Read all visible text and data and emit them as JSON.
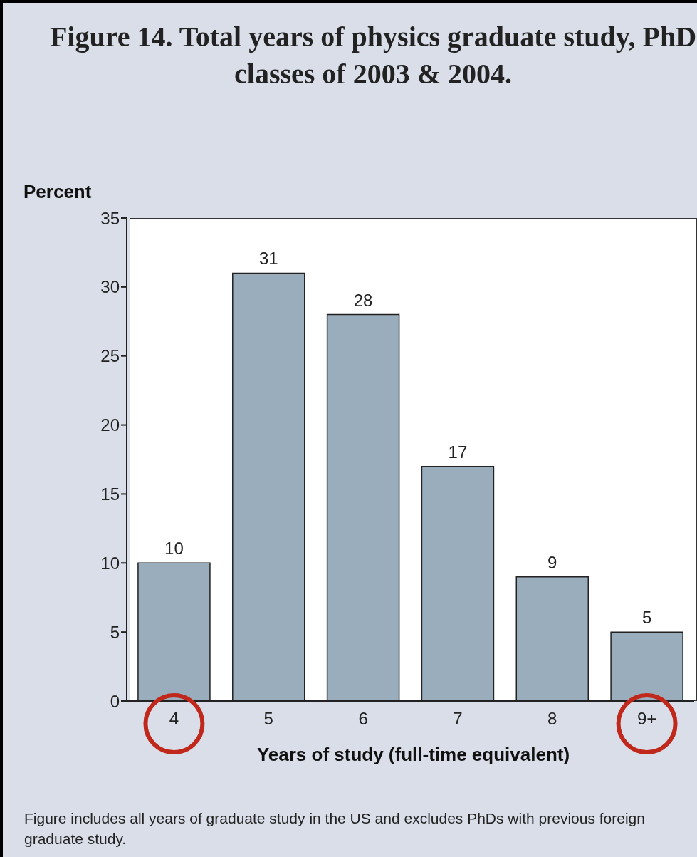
{
  "chart_data": {
    "type": "bar",
    "title": "Figure 14.  Total years of physics graduate study, PhD classes of 2003 & 2004.",
    "ylabel": "Percent",
    "xlabel": "Years of study (full-time equivalent)",
    "categories": [
      "4",
      "5",
      "6",
      "7",
      "8",
      "9+"
    ],
    "values": [
      10,
      31,
      28,
      17,
      9,
      5
    ],
    "color": "#9aadbd",
    "ylim": [
      0,
      35
    ],
    "yticks": [
      0,
      5,
      10,
      15,
      20,
      25,
      30,
      35
    ],
    "grid": false,
    "data_labels": true,
    "annotations": [
      "Figure includes all years of graduate study in the US and excludes PhDs with previous foreign graduate study."
    ]
  }
}
